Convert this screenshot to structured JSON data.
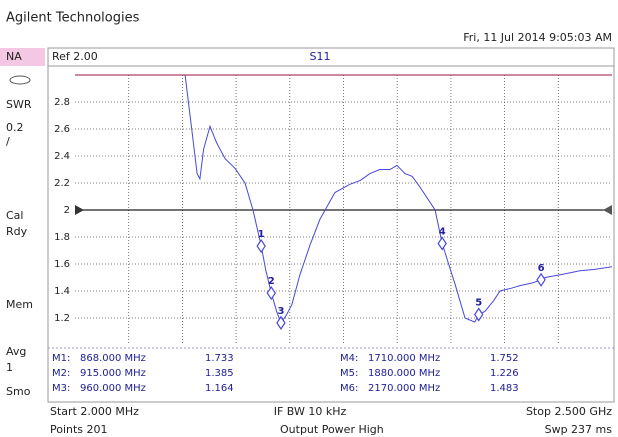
{
  "header": {
    "brand": "Agilent Technologies",
    "datetime": "Fri, 11 Jul 2014 9:05:03 AM"
  },
  "sidebar": [
    "NA",
    "SWR",
    "0.2",
    "/",
    "Cal",
    "Rdy",
    "Mem",
    "Avg",
    "1",
    "Smo"
  ],
  "chart_data": {
    "type": "line",
    "title": "S11",
    "ref": {
      "value": 2,
      "label": "Ref 2.00"
    },
    "x": [
      514,
      545,
      570,
      583,
      600,
      630,
      660,
      700,
      746,
      793,
      830,
      868,
      890,
      915,
      940,
      960,
      985,
      1011,
      1048,
      1095,
      1141,
      1211,
      1281,
      1330,
      1374,
      1420,
      1467,
      1500,
      1537,
      1570,
      1607,
      1677,
      1710,
      1740,
      1770,
      1816,
      1862,
      1880,
      1909,
      1950,
      1979,
      2030,
      2072,
      2130,
      2170,
      2188,
      2260,
      2351,
      2420,
      2500
    ],
    "series": [
      {
        "name": "S11",
        "color": "#4848d8",
        "values": [
          3.0,
          2.6,
          2.27,
          2.23,
          2.45,
          2.62,
          2.5,
          2.38,
          2.31,
          2.2,
          2.0,
          1.733,
          1.55,
          1.385,
          1.25,
          1.164,
          1.22,
          1.3,
          1.52,
          1.74,
          1.93,
          2.13,
          2.19,
          2.22,
          2.27,
          2.3,
          2.3,
          2.33,
          2.27,
          2.25,
          2.17,
          2.0,
          1.752,
          1.6,
          1.45,
          1.2,
          1.17,
          1.226,
          1.25,
          1.33,
          1.4,
          1.42,
          1.44,
          1.46,
          1.483,
          1.5,
          1.52,
          1.55,
          1.56,
          1.58
        ]
      }
    ],
    "xlim": [
      2,
      2500
    ],
    "ylim": [
      1.0,
      3.0
    ],
    "yticks": [
      1.2,
      1.4,
      1.6,
      1.8,
      2,
      2.2,
      2.4,
      2.6,
      2.8
    ],
    "grid": true,
    "markers": [
      {
        "label": "1",
        "name": "M1:",
        "freq": "868.000 MHz",
        "x": 868,
        "value": 1.733,
        "value_label": "1.733"
      },
      {
        "label": "2",
        "name": "M2:",
        "freq": "915.000 MHz",
        "x": 915,
        "value": 1.385,
        "value_label": "1.385"
      },
      {
        "label": "3",
        "name": "M3:",
        "freq": "960.000 MHz",
        "x": 960,
        "value": 1.164,
        "value_label": "1.164"
      },
      {
        "label": "4",
        "name": "M4:",
        "freq": "1710.000 MHz",
        "x": 1710,
        "value": 1.752,
        "value_label": "1.752"
      },
      {
        "label": "5",
        "name": "M5:",
        "freq": "1880.000 MHz",
        "x": 1880,
        "value": 1.226,
        "value_label": "1.226"
      },
      {
        "label": "6",
        "name": "M6:",
        "freq": "2170.000 MHz",
        "x": 2170,
        "value": 1.483,
        "value_label": "1.483"
      }
    ]
  },
  "footer": {
    "start": "Start 2.000 MHz",
    "ifbw": "IF BW 10 kHz",
    "stop": "Stop 2.500 GHz",
    "points": "Points 201",
    "power": "Output Power High",
    "sweep": "Swp 237 ms"
  }
}
